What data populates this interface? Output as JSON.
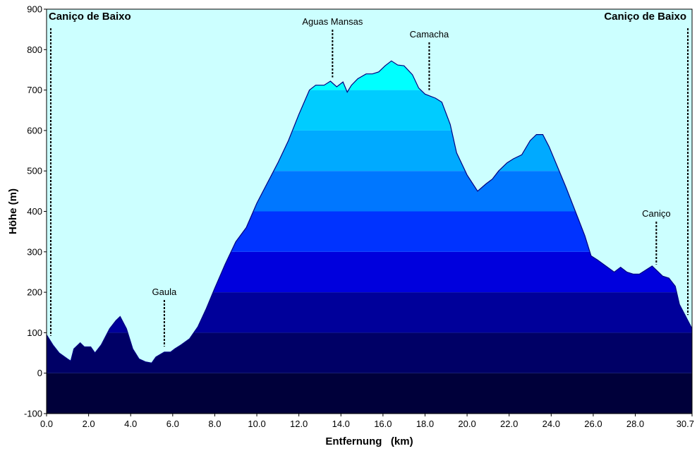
{
  "chart_data": {
    "type": "area",
    "xlabel": "Entfernung   (km)",
    "ylabel": "Höhe (m)",
    "xlim": [
      0,
      30.7
    ],
    "ylim": [
      -100,
      900
    ],
    "x_ticks": [
      "0.0",
      "2.0",
      "4.0",
      "6.0",
      "8.0",
      "10.0",
      "12.0",
      "14.0",
      "16.0",
      "18.0",
      "20.0",
      "22.0",
      "24.0",
      "26.0",
      "28.0",
      "30.7"
    ],
    "y_ticks": [
      "900",
      "800",
      "700",
      "600",
      "500",
      "400",
      "300",
      "200",
      "100",
      "0",
      "-100"
    ],
    "band_colors": [
      "#00003a",
      "#000066",
      "#00009a",
      "#0000dd",
      "#0033ff",
      "#0077ff",
      "#00aaff",
      "#00ccff",
      "#00ffff",
      "#003e3e"
    ],
    "background_color": "#ccffff",
    "profile_line_color": "#000080",
    "x": [
      0,
      0.3,
      0.6,
      1.0,
      1.15,
      1.3,
      1.6,
      1.8,
      2.1,
      2.3,
      2.6,
      3.0,
      3.3,
      3.5,
      3.8,
      4.1,
      4.4,
      4.7,
      5.0,
      5.2,
      5.6,
      5.9,
      6.1,
      6.4,
      6.8,
      7.2,
      7.6,
      8.0,
      8.5,
      9.0,
      9.5,
      10.0,
      10.5,
      11.0,
      11.5,
      12.0,
      12.5,
      12.8,
      13.2,
      13.5,
      13.8,
      14.1,
      14.3,
      14.5,
      14.8,
      15.2,
      15.5,
      15.8,
      16.1,
      16.4,
      16.7,
      17.0,
      17.4,
      17.7,
      18.0,
      18.5,
      18.8,
      19.2,
      19.5,
      20.0,
      20.5,
      20.9,
      21.2,
      21.5,
      21.9,
      22.2,
      22.6,
      23.0,
      23.3,
      23.6,
      23.9,
      24.3,
      24.7,
      25.0,
      25.3,
      25.6,
      25.9,
      26.2,
      26.6,
      27.0,
      27.3,
      27.6,
      27.9,
      28.2,
      28.5,
      28.8,
      29.0,
      29.3,
      29.6,
      29.9,
      30.1,
      30.4,
      30.7
    ],
    "y": [
      95,
      70,
      50,
      35,
      30,
      60,
      75,
      65,
      65,
      50,
      70,
      110,
      130,
      140,
      110,
      60,
      35,
      28,
      25,
      40,
      52,
      52,
      60,
      70,
      85,
      115,
      160,
      210,
      270,
      325,
      360,
      420,
      470,
      520,
      575,
      640,
      700,
      712,
      712,
      722,
      708,
      720,
      695,
      712,
      728,
      740,
      740,
      745,
      760,
      772,
      762,
      760,
      738,
      705,
      690,
      680,
      670,
      615,
      545,
      490,
      450,
      468,
      480,
      500,
      520,
      530,
      540,
      575,
      590,
      590,
      560,
      510,
      460,
      420,
      380,
      340,
      290,
      280,
      265,
      250,
      262,
      250,
      245,
      245,
      255,
      265,
      255,
      240,
      235,
      215,
      170,
      140,
      110
    ],
    "annotations": [
      {
        "label": "Caniço de Baixo",
        "x": 0.2,
        "bold": true
      },
      {
        "label": "Gaula",
        "x": 5.6,
        "bold": false
      },
      {
        "label": "Aguas Mansas",
        "x": 13.6,
        "bold": false
      },
      {
        "label": "Camacha",
        "x": 18.2,
        "bold": false
      },
      {
        "label": "Caniço",
        "x": 29.0,
        "bold": false
      },
      {
        "label": "Caniço de Baixo",
        "x": 30.5,
        "bold": true
      }
    ]
  }
}
